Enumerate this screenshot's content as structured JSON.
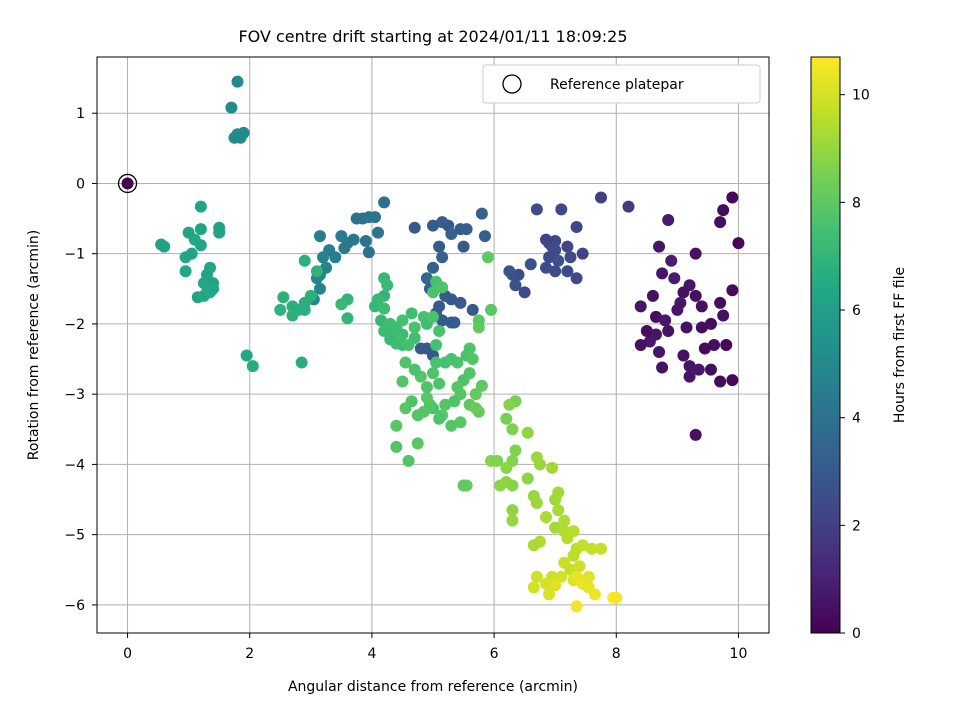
{
  "chart_data": {
    "type": "scatter",
    "title": "FOV centre drift starting at 2024/01/11 18:09:25",
    "xlabel": "Angular distance from reference (arcmin)",
    "ylabel": "Rotation from reference (arcmin)",
    "xlim": [
      -0.5,
      10.5
    ],
    "ylim": [
      -6.4,
      1.8
    ],
    "xticks": [
      0,
      2,
      4,
      6,
      8,
      10
    ],
    "yticks": [
      1,
      0,
      -1,
      -2,
      -3,
      -4,
      -5,
      -6
    ],
    "grid": true,
    "legend": {
      "entries": [
        "Reference platepar"
      ],
      "position": "top-right"
    },
    "reference_point": {
      "x": 0,
      "y": 0,
      "label": "Reference platepar"
    },
    "colorbar": {
      "label": "Hours from first FF file",
      "colormap": "viridis",
      "range": [
        0,
        10.7
      ],
      "ticks": [
        0,
        2,
        4,
        6,
        8,
        10
      ]
    },
    "clusters_note_free": true,
    "points": [
      [
        0.0,
        0.0,
        0.0
      ],
      [
        9.9,
        -0.2,
        0.2
      ],
      [
        9.75,
        -0.38,
        0.3
      ],
      [
        9.7,
        -0.55,
        0.4
      ],
      [
        10.0,
        -0.85,
        0.2
      ],
      [
        9.9,
        -1.52,
        0.3
      ],
      [
        9.7,
        -1.7,
        0.3
      ],
      [
        9.75,
        -1.88,
        0.4
      ],
      [
        9.4,
        -1.75,
        0.5
      ],
      [
        9.3,
        -1.6,
        0.4
      ],
      [
        9.2,
        -1.45,
        0.6
      ],
      [
        9.1,
        -1.55,
        0.5
      ],
      [
        9.05,
        -1.7,
        0.7
      ],
      [
        9.0,
        -1.8,
        0.6
      ],
      [
        8.95,
        -1.35,
        0.8
      ],
      [
        9.3,
        -1.0,
        0.5
      ],
      [
        8.9,
        -1.1,
        0.9
      ],
      [
        8.75,
        -1.28,
        0.7
      ],
      [
        8.7,
        -0.9,
        0.6
      ],
      [
        8.85,
        -0.52,
        0.8
      ],
      [
        8.4,
        -1.75,
        0.6
      ],
      [
        8.6,
        -1.6,
        0.5
      ],
      [
        8.65,
        -1.9,
        0.4
      ],
      [
        8.8,
        -1.95,
        0.7
      ],
      [
        8.85,
        -2.1,
        0.5
      ],
      [
        8.65,
        -2.15,
        0.6
      ],
      [
        8.55,
        -2.25,
        0.7
      ],
      [
        8.5,
        -2.1,
        0.4
      ],
      [
        8.4,
        -2.3,
        0.5
      ],
      [
        8.7,
        -2.4,
        0.6
      ],
      [
        9.15,
        -2.05,
        0.5
      ],
      [
        9.4,
        -2.05,
        0.4
      ],
      [
        9.55,
        -2.0,
        0.3
      ],
      [
        9.6,
        -2.3,
        0.4
      ],
      [
        9.45,
        -2.35,
        0.3
      ],
      [
        9.8,
        -2.3,
        0.2
      ],
      [
        9.1,
        -2.45,
        0.5
      ],
      [
        9.2,
        -2.6,
        0.6
      ],
      [
        9.35,
        -2.65,
        0.7
      ],
      [
        9.2,
        -2.75,
        0.6
      ],
      [
        8.75,
        -2.62,
        0.5
      ],
      [
        9.55,
        -2.65,
        0.4
      ],
      [
        9.7,
        -2.82,
        0.3
      ],
      [
        9.9,
        -2.8,
        0.2
      ],
      [
        9.3,
        -3.58,
        0.5
      ],
      [
        8.2,
        -0.33,
        1.8
      ],
      [
        7.75,
        -0.2,
        2.0
      ],
      [
        7.35,
        -0.62,
        2.2
      ],
      [
        7.45,
        -1.0,
        2.1
      ],
      [
        7.1,
        -0.37,
        2.3
      ],
      [
        6.7,
        -0.37,
        2.4
      ],
      [
        7.0,
        -0.82,
        2.2
      ],
      [
        6.9,
        -0.85,
        2.0
      ],
      [
        6.95,
        -0.9,
        2.3
      ],
      [
        6.85,
        -0.8,
        2.1
      ],
      [
        7.0,
        -0.95,
        2.5
      ],
      [
        7.2,
        -0.9,
        2.2
      ],
      [
        7.25,
        -1.05,
        2.4
      ],
      [
        6.9,
        -1.05,
        2.3
      ],
      [
        6.85,
        -1.2,
        2.5
      ],
      [
        7.05,
        -1.1,
        2.6
      ],
      [
        7.2,
        -1.25,
        2.4
      ],
      [
        7.35,
        -1.35,
        2.3
      ],
      [
        7.0,
        -1.25,
        2.5
      ],
      [
        6.6,
        -1.15,
        2.6
      ],
      [
        6.4,
        -1.3,
        2.5
      ],
      [
        6.3,
        -1.3,
        2.7
      ],
      [
        6.35,
        -1.45,
        2.6
      ],
      [
        6.5,
        -1.55,
        2.4
      ],
      [
        6.25,
        -1.25,
        2.8
      ],
      [
        4.7,
        -0.63,
        3.0
      ],
      [
        5.0,
        -0.6,
        3.1
      ],
      [
        5.15,
        -0.55,
        3.2
      ],
      [
        5.25,
        -0.6,
        3.0
      ],
      [
        5.45,
        -0.65,
        3.1
      ],
      [
        5.8,
        -0.43,
        3.3
      ],
      [
        5.85,
        -0.75,
        3.2
      ],
      [
        5.5,
        -0.9,
        3.0
      ],
      [
        5.1,
        -0.9,
        3.1
      ],
      [
        5.15,
        -1.05,
        3.3
      ],
      [
        5.3,
        -0.72,
        3.4
      ],
      [
        5.55,
        -0.65,
        3.2
      ],
      [
        5.0,
        -1.2,
        3.3
      ],
      [
        4.9,
        -1.35,
        3.5
      ],
      [
        4.95,
        -1.5,
        3.2
      ],
      [
        5.2,
        -1.6,
        3.1
      ],
      [
        5.1,
        -1.75,
        3.0
      ],
      [
        5.3,
        -1.65,
        2.9
      ],
      [
        5.45,
        -1.7,
        3.0
      ],
      [
        5.65,
        -1.8,
        2.9
      ],
      [
        5.05,
        -1.85,
        3.1
      ],
      [
        5.15,
        -1.95,
        3.0
      ],
      [
        5.35,
        -1.98,
        3.2
      ],
      [
        4.8,
        -2.35,
        3.1
      ],
      [
        4.9,
        -2.35,
        3.0
      ],
      [
        5.0,
        -2.45,
        2.9
      ],
      [
        5.3,
        -1.98,
        3.1
      ],
      [
        4.2,
        -0.27,
        3.8
      ],
      [
        4.05,
        -0.48,
        4.0
      ],
      [
        3.95,
        -0.48,
        4.1
      ],
      [
        3.85,
        -0.5,
        4.2
      ],
      [
        3.75,
        -0.5,
        4.0
      ],
      [
        4.1,
        -0.7,
        4.1
      ],
      [
        3.6,
        -0.85,
        4.3
      ],
      [
        3.7,
        -0.8,
        4.2
      ],
      [
        3.5,
        -0.75,
        4.4
      ],
      [
        3.55,
        -0.92,
        4.3
      ],
      [
        3.9,
        -0.82,
        4.1
      ],
      [
        3.95,
        -0.98,
        4.0
      ],
      [
        3.3,
        -0.95,
        4.5
      ],
      [
        3.4,
        -1.05,
        4.6
      ],
      [
        3.2,
        -1.05,
        4.7
      ],
      [
        3.15,
        -0.75,
        4.6
      ],
      [
        3.25,
        -1.2,
        4.8
      ],
      [
        3.15,
        -1.3,
        4.7
      ],
      [
        3.1,
        -1.35,
        4.9
      ],
      [
        3.15,
        -1.5,
        4.8
      ],
      [
        3.05,
        -1.65,
        4.9
      ],
      [
        1.8,
        1.45,
        5.0
      ],
      [
        1.7,
        1.08,
        5.1
      ],
      [
        1.9,
        0.72,
        5.0
      ],
      [
        1.8,
        0.7,
        5.2
      ],
      [
        1.75,
        0.65,
        5.1
      ],
      [
        1.85,
        0.65,
        5.0
      ],
      [
        1.2,
        -0.33,
        6.2
      ],
      [
        1.2,
        -0.65,
        6.3
      ],
      [
        1.0,
        -0.7,
        6.2
      ],
      [
        1.1,
        -0.8,
        6.4
      ],
      [
        1.2,
        -0.88,
        6.3
      ],
      [
        1.5,
        -0.63,
        6.1
      ],
      [
        1.5,
        -0.7,
        6.2
      ],
      [
        0.95,
        -1.05,
        6.4
      ],
      [
        0.6,
        -0.9,
        6.3
      ],
      [
        0.55,
        -0.87,
        6.1
      ],
      [
        1.05,
        -1.0,
        6.2
      ],
      [
        0.95,
        -1.25,
        6.4
      ],
      [
        1.35,
        -1.2,
        6.3
      ],
      [
        1.3,
        -1.3,
        6.2
      ],
      [
        1.25,
        -1.42,
        6.4
      ],
      [
        1.4,
        -1.42,
        6.1
      ],
      [
        1.3,
        -1.55,
        6.3
      ],
      [
        1.15,
        -1.62,
        6.2
      ],
      [
        1.25,
        -1.6,
        6.4
      ],
      [
        1.35,
        -1.55,
        6.5
      ],
      [
        1.4,
        -1.5,
        6.3
      ],
      [
        1.95,
        -2.45,
        6.4
      ],
      [
        2.05,
        -2.6,
        6.5
      ],
      [
        2.85,
        -2.55,
        6.6
      ],
      [
        2.9,
        -1.1,
        6.8
      ],
      [
        3.1,
        -1.25,
        6.9
      ],
      [
        3.0,
        -1.6,
        6.8
      ],
      [
        2.9,
        -1.7,
        6.7
      ],
      [
        2.8,
        -1.8,
        6.9
      ],
      [
        2.7,
        -1.75,
        6.7
      ],
      [
        2.55,
        -1.62,
        6.8
      ],
      [
        2.5,
        -1.8,
        6.9
      ],
      [
        2.7,
        -1.88,
        6.8
      ],
      [
        2.9,
        -1.8,
        6.7
      ],
      [
        3.6,
        -1.65,
        7.0
      ],
      [
        3.5,
        -1.72,
        7.1
      ],
      [
        3.6,
        -1.92,
        7.0
      ],
      [
        4.2,
        -1.35,
        7.1
      ],
      [
        4.25,
        -1.45,
        7.2
      ],
      [
        4.2,
        -1.6,
        7.0
      ],
      [
        4.1,
        -1.65,
        7.2
      ],
      [
        4.05,
        -1.75,
        7.1
      ],
      [
        4.2,
        -1.78,
        7.3
      ],
      [
        4.15,
        -1.95,
        7.1
      ],
      [
        4.2,
        -2.1,
        7.2
      ],
      [
        4.3,
        -2.0,
        7.4
      ],
      [
        4.35,
        -2.12,
        7.3
      ],
      [
        4.3,
        -2.22,
        7.2
      ],
      [
        4.4,
        -2.28,
        7.3
      ],
      [
        4.4,
        -2.05,
        7.4
      ],
      [
        4.5,
        -1.95,
        7.5
      ],
      [
        4.5,
        -2.15,
        7.4
      ],
      [
        4.5,
        -2.3,
        7.3
      ],
      [
        4.6,
        -2.3,
        7.5
      ],
      [
        4.7,
        -2.2,
        7.4
      ],
      [
        4.7,
        -2.05,
        7.6
      ],
      [
        4.65,
        -1.85,
        7.4
      ],
      [
        4.85,
        -1.9,
        7.5
      ],
      [
        4.9,
        -2.0,
        7.4
      ],
      [
        5.0,
        -1.9,
        7.6
      ],
      [
        5.05,
        -1.4,
        7.5
      ],
      [
        5.0,
        -1.55,
        7.6
      ],
      [
        5.15,
        -1.48,
        7.7
      ],
      [
        5.1,
        -2.1,
        7.6
      ],
      [
        5.05,
        -2.3,
        7.5
      ],
      [
        5.05,
        -2.55,
        7.6
      ],
      [
        5.0,
        -2.7,
        7.7
      ],
      [
        5.2,
        -2.55,
        7.5
      ],
      [
        5.3,
        -2.5,
        7.6
      ],
      [
        5.4,
        -2.55,
        7.7
      ],
      [
        5.55,
        -2.45,
        7.6
      ],
      [
        5.65,
        -2.5,
        7.8
      ],
      [
        5.6,
        -2.35,
        7.7
      ],
      [
        5.6,
        -2.7,
        7.8
      ],
      [
        5.5,
        -2.8,
        7.7
      ],
      [
        5.4,
        -2.9,
        7.8
      ],
      [
        5.45,
        -3.0,
        7.9
      ],
      [
        5.35,
        -3.1,
        7.7
      ],
      [
        5.2,
        -3.15,
        7.8
      ],
      [
        5.15,
        -3.3,
        7.9
      ],
      [
        5.3,
        -3.45,
        7.8
      ],
      [
        5.45,
        -3.4,
        7.9
      ],
      [
        5.1,
        -2.85,
        7.7
      ],
      [
        5.0,
        -3.2,
        7.6
      ],
      [
        4.95,
        -3.15,
        7.8
      ],
      [
        5.1,
        -3.35,
        7.7
      ],
      [
        4.85,
        -3.25,
        7.8
      ],
      [
        4.9,
        -3.05,
        7.9
      ],
      [
        4.9,
        -2.9,
        7.7
      ],
      [
        4.8,
        -2.75,
        7.8
      ],
      [
        4.7,
        -2.65,
        7.6
      ],
      [
        4.55,
        -2.55,
        7.7
      ],
      [
        4.5,
        -2.82,
        7.8
      ],
      [
        4.65,
        -3.1,
        7.7
      ],
      [
        4.55,
        -3.2,
        7.9
      ],
      [
        4.75,
        -3.3,
        7.8
      ],
      [
        4.4,
        -3.45,
        7.9
      ],
      [
        4.4,
        -3.75,
        7.8
      ],
      [
        4.75,
        -3.7,
        7.9
      ],
      [
        4.6,
        -3.95,
        7.8
      ],
      [
        5.5,
        -4.3,
        8.0
      ],
      [
        5.55,
        -4.3,
        8.1
      ],
      [
        5.75,
        -1.95,
        7.9
      ],
      [
        5.75,
        -2.05,
        8.0
      ],
      [
        5.8,
        -2.88,
        8.0
      ],
      [
        5.7,
        -3.0,
        8.1
      ],
      [
        5.6,
        -3.15,
        8.0
      ],
      [
        5.75,
        -3.25,
        8.1
      ],
      [
        5.7,
        -3.2,
        8.2
      ],
      [
        5.95,
        -1.8,
        7.9
      ],
      [
        5.9,
        -1.05,
        8.0
      ],
      [
        6.2,
        -3.35,
        8.5
      ],
      [
        6.3,
        -3.5,
        8.6
      ],
      [
        6.35,
        -3.1,
        8.5
      ],
      [
        6.25,
        -3.15,
        8.7
      ],
      [
        6.35,
        -3.8,
        8.6
      ],
      [
        6.3,
        -3.95,
        8.7
      ],
      [
        6.2,
        -4.05,
        8.8
      ],
      [
        5.95,
        -3.95,
        8.7
      ],
      [
        6.05,
        -3.95,
        8.6
      ],
      [
        6.1,
        -4.3,
        8.8
      ],
      [
        6.2,
        -4.25,
        8.9
      ],
      [
        6.3,
        -4.3,
        8.7
      ],
      [
        6.55,
        -3.55,
        8.9
      ],
      [
        6.55,
        -4.2,
        8.8
      ],
      [
        6.3,
        -4.65,
        8.9
      ],
      [
        6.3,
        -4.8,
        9.0
      ],
      [
        6.65,
        -4.45,
        9.0
      ],
      [
        6.7,
        -4.55,
        9.1
      ],
      [
        6.75,
        -4.0,
        9.0
      ],
      [
        6.7,
        -3.9,
        9.1
      ],
      [
        6.95,
        -4.05,
        9.2
      ],
      [
        7.0,
        -4.5,
        9.1
      ],
      [
        7.05,
        -4.4,
        9.2
      ],
      [
        6.85,
        -4.75,
        9.3
      ],
      [
        7.0,
        -4.9,
        9.2
      ],
      [
        7.05,
        -4.65,
        9.3
      ],
      [
        7.15,
        -4.8,
        9.4
      ],
      [
        6.75,
        -5.1,
        9.4
      ],
      [
        6.65,
        -5.15,
        9.3
      ],
      [
        7.2,
        -5.05,
        9.5
      ],
      [
        7.15,
        -4.95,
        9.4
      ],
      [
        7.3,
        -4.95,
        9.5
      ],
      [
        7.35,
        -5.2,
        9.6
      ],
      [
        7.45,
        -5.15,
        9.7
      ],
      [
        7.6,
        -5.2,
        9.7
      ],
      [
        7.75,
        -5.2,
        9.8
      ],
      [
        7.3,
        -5.3,
        9.6
      ],
      [
        7.15,
        -5.4,
        9.8
      ],
      [
        7.25,
        -5.5,
        9.7
      ],
      [
        7.4,
        -5.45,
        9.9
      ],
      [
        7.45,
        -5.65,
        10.0
      ],
      [
        7.3,
        -5.65,
        10.1
      ],
      [
        7.1,
        -5.6,
        10.0
      ],
      [
        6.95,
        -5.6,
        9.9
      ],
      [
        6.85,
        -5.7,
        10.0
      ],
      [
        6.9,
        -5.85,
        10.1
      ],
      [
        6.7,
        -5.6,
        9.9
      ],
      [
        6.65,
        -5.75,
        10.0
      ],
      [
        7.0,
        -5.72,
        10.2
      ],
      [
        7.35,
        -5.6,
        10.3
      ],
      [
        7.45,
        -5.7,
        10.4
      ],
      [
        7.55,
        -5.75,
        10.3
      ],
      [
        7.65,
        -5.85,
        10.4
      ],
      [
        7.55,
        -5.6,
        10.2
      ],
      [
        7.35,
        -6.02,
        10.5
      ],
      [
        7.95,
        -5.9,
        10.7
      ],
      [
        8.0,
        -5.9,
        10.6
      ]
    ]
  }
}
